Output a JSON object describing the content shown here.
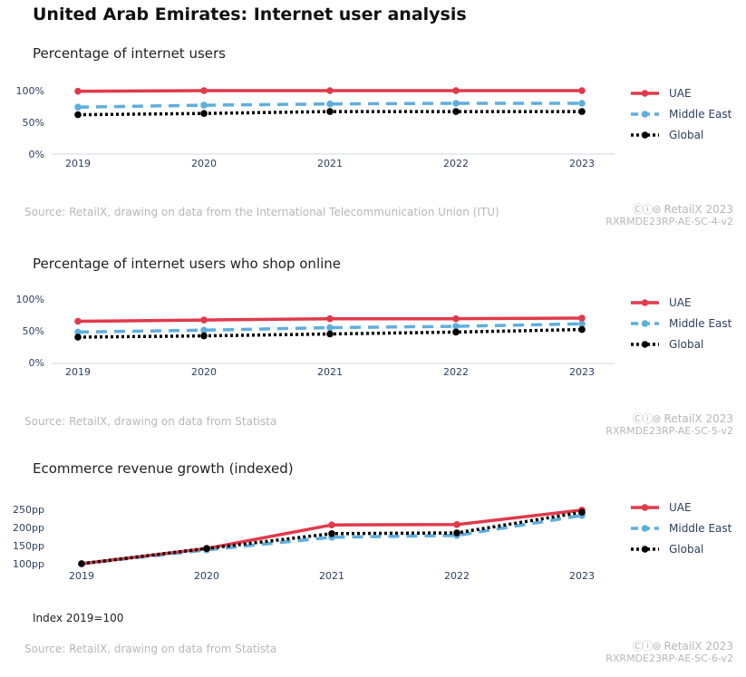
{
  "title": "United Arab Emirates: Internet user analysis",
  "brand": "RetailX 2023",
  "cc_icons": "Ⓒⓘ⊜",
  "colors": {
    "UAE": "#e03a4b",
    "Middle East": "#5eaede",
    "Global": "#000000"
  },
  "chart_data": [
    {
      "type": "line",
      "title": "Percentage of internet users",
      "categories": [
        "2019",
        "2020",
        "2021",
        "2022",
        "2023"
      ],
      "yticks": [
        "100%",
        "50%",
        "0%"
      ],
      "ylim": [
        0,
        100
      ],
      "series": [
        {
          "name": "UAE",
          "values": [
            99,
            100,
            100,
            100,
            100
          ]
        },
        {
          "name": "Middle East",
          "values": [
            74,
            77,
            79,
            80,
            80
          ]
        },
        {
          "name": "Global",
          "values": [
            62,
            64,
            67,
            67,
            67
          ]
        }
      ],
      "source": "Source: RetailX, drawing on data from the International Telecommunication Union (ITU)",
      "code": "RXRMDE23RP-AE-SC-4-v2"
    },
    {
      "type": "line",
      "title": "Percentage of internet users who shop online",
      "categories": [
        "2019",
        "2020",
        "2021",
        "2022",
        "2023"
      ],
      "yticks": [
        "100%",
        "50%",
        "0%"
      ],
      "ylim": [
        0,
        100
      ],
      "series": [
        {
          "name": "UAE",
          "values": [
            65,
            67,
            69,
            69,
            70
          ]
        },
        {
          "name": "Middle East",
          "values": [
            48,
            51,
            55,
            57,
            61
          ]
        },
        {
          "name": "Global",
          "values": [
            40,
            42,
            45,
            48,
            52
          ]
        }
      ],
      "source": "Source: RetailX, drawing on data from Statista",
      "code": "RXRMDE23RP-AE-SC-5-v2"
    },
    {
      "type": "line",
      "title": "Ecommerce revenue growth (indexed)",
      "categories": [
        "2019",
        "2020",
        "2021",
        "2022",
        "2023"
      ],
      "yticks": [
        "250pp",
        "200pp",
        "150pp",
        "100pp"
      ],
      "ylim": [
        100,
        250
      ],
      "series": [
        {
          "name": "UAE",
          "values": [
            100,
            142,
            207,
            208,
            248
          ]
        },
        {
          "name": "Middle East",
          "values": [
            100,
            138,
            173,
            178,
            233
          ]
        },
        {
          "name": "Global",
          "values": [
            100,
            142,
            183,
            185,
            242
          ]
        }
      ],
      "note": "Index 2019=100",
      "source": "Source: RetailX, drawing on data from Statista",
      "code": "RXRMDE23RP-AE-SC-6-v2"
    }
  ]
}
